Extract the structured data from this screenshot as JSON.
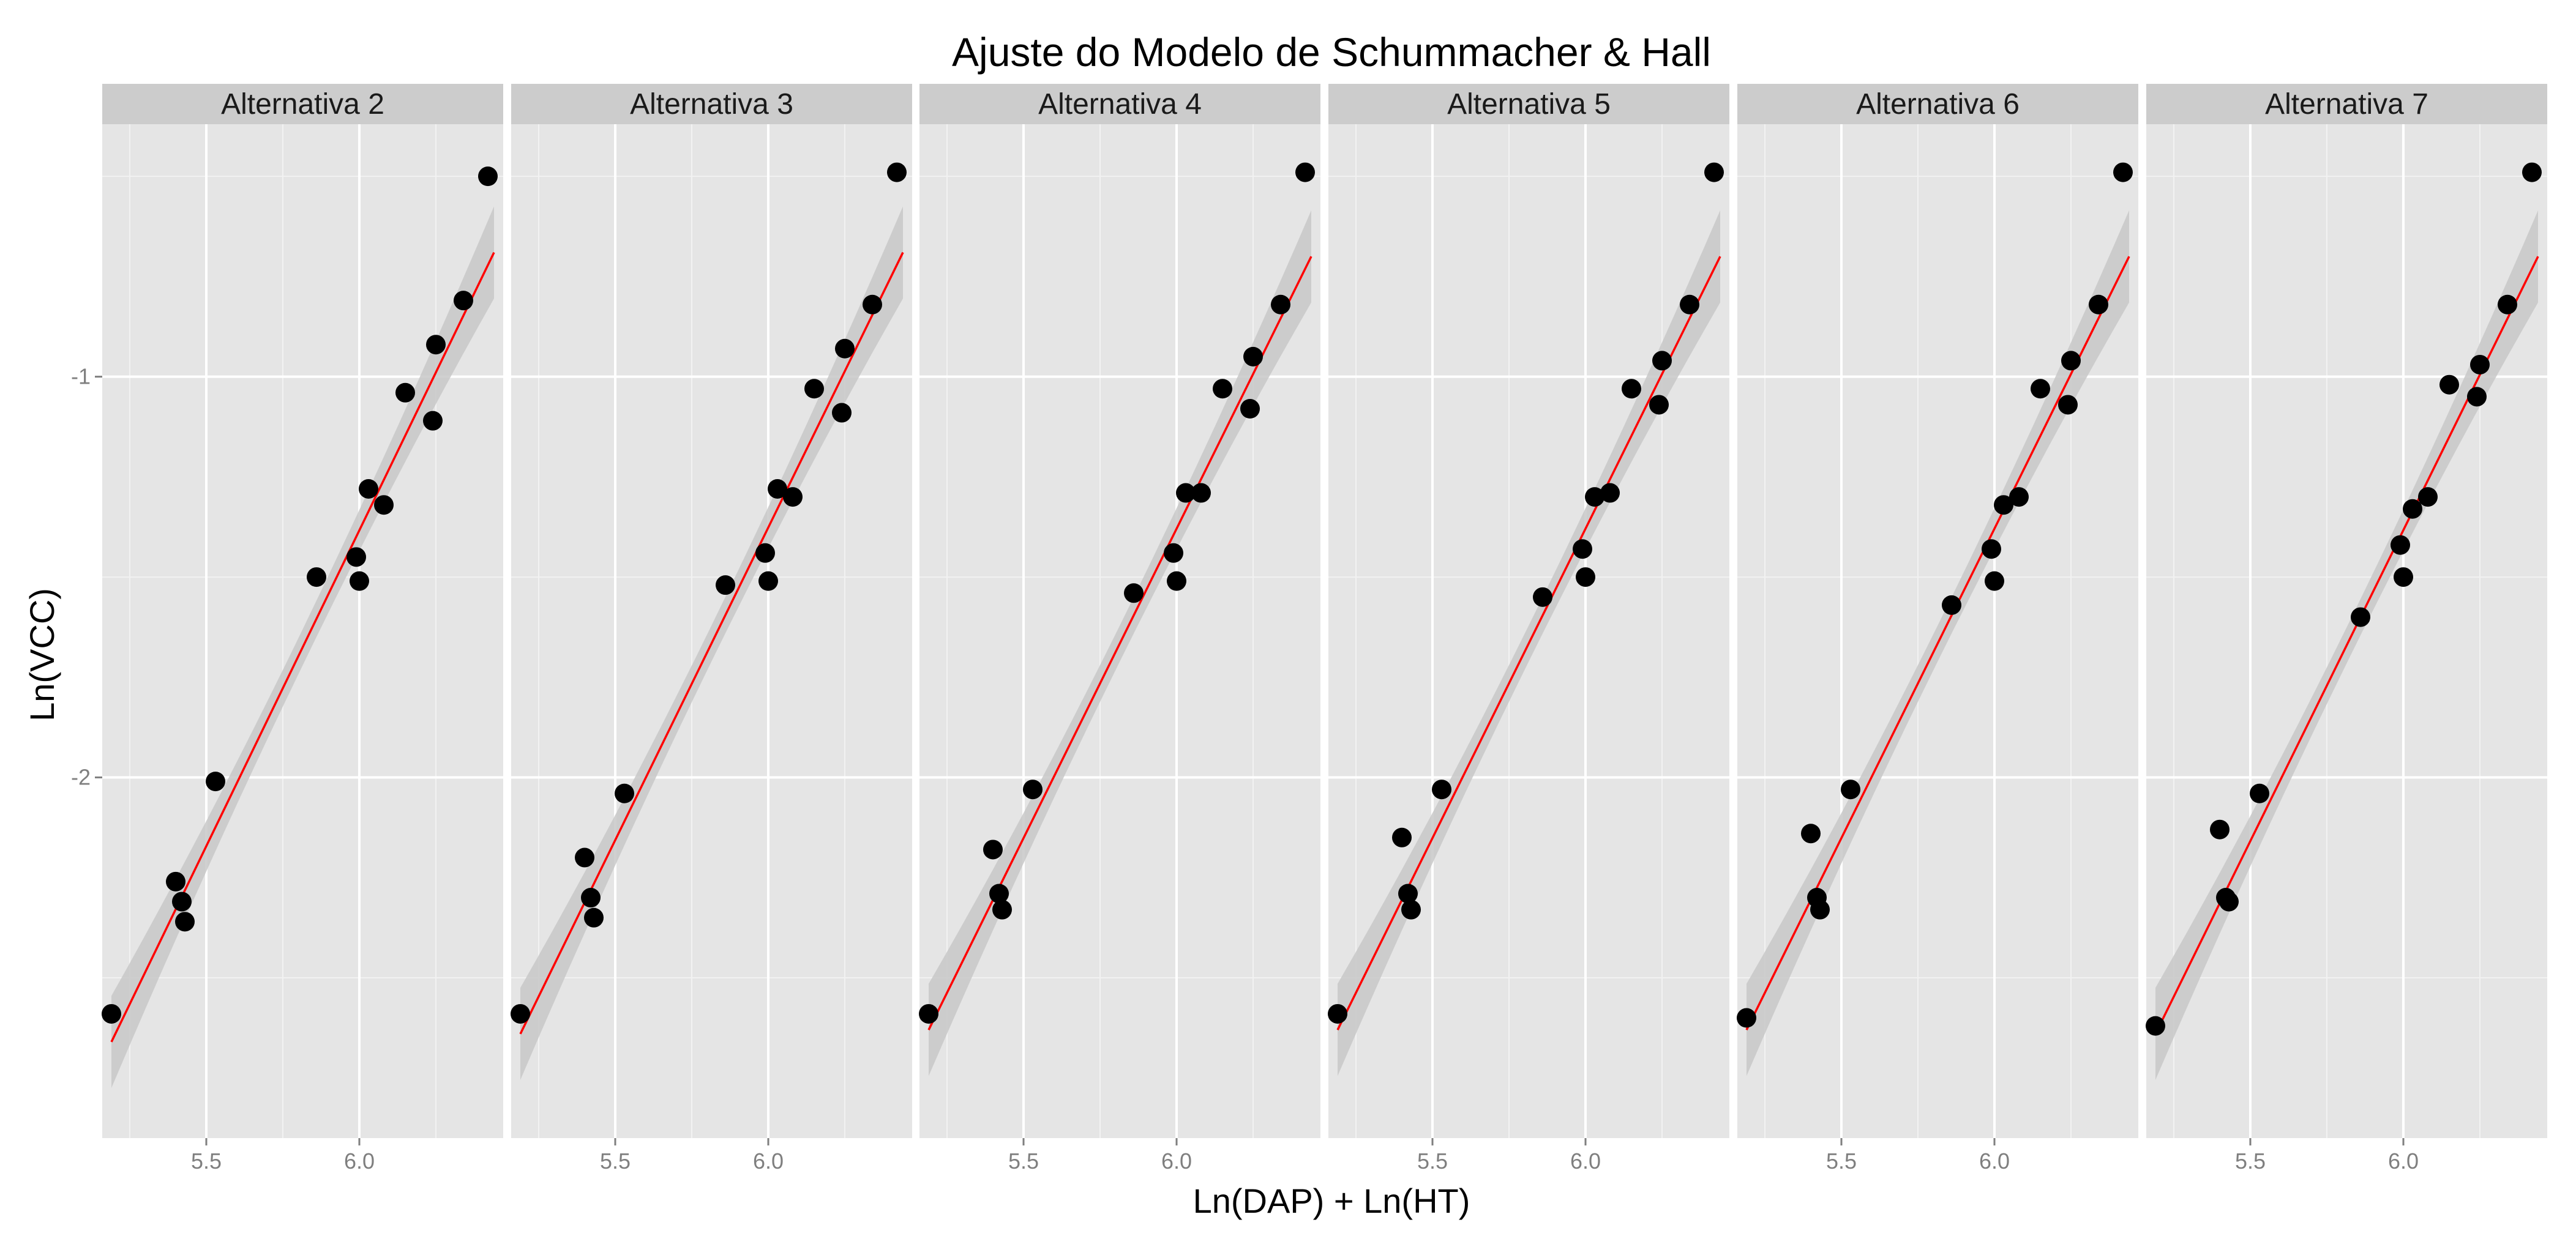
{
  "chart_data": {
    "type": "scatter",
    "title": "Ajuste do Modelo de Schummacher & Hall",
    "xlabel": "Ln(DAP) + Ln(HT)",
    "ylabel": "Ln(VCC)",
    "xlim": [
      5.16,
      6.47
    ],
    "ylim": [
      -2.9,
      -0.37
    ],
    "x_ticks": [
      5.5,
      6.0
    ],
    "x_tick_labels": [
      "5.5",
      "6.0"
    ],
    "y_ticks": [
      -1,
      -2
    ],
    "y_tick_labels": [
      "-1",
      "-2"
    ],
    "grid": true,
    "colors": {
      "panel_bg": "#e5e5e5",
      "strip_bg": "#cccccc",
      "grid_major": "#ffffff",
      "grid_minor": "#f2f2f2",
      "point": "#000000",
      "fit_line": "#ff0000",
      "confidence_band": "#c8c8c8"
    },
    "x": [
      5.19,
      5.4,
      5.42,
      5.43,
      5.53,
      5.86,
      5.99,
      6.0,
      6.03,
      6.08,
      6.15,
      6.24,
      6.25,
      6.34,
      6.42
    ],
    "panels": [
      {
        "name": "Alternativa 2",
        "values": [
          -2.59,
          -2.26,
          -2.31,
          -2.36,
          -2.01,
          -1.5,
          -1.45,
          -1.51,
          -1.28,
          -1.32,
          -1.04,
          -1.11,
          -0.92,
          -0.81,
          -0.5
        ],
        "fit": {
          "x": [
            5.19,
            6.44
          ],
          "y": [
            -2.66,
            -0.69
          ]
        }
      },
      {
        "name": "Alternativa 3",
        "values": [
          -2.59,
          -2.2,
          -2.3,
          -2.35,
          -2.04,
          -1.52,
          -1.44,
          -1.51,
          -1.28,
          -1.3,
          -1.03,
          -1.09,
          -0.93,
          -0.82,
          -0.49
        ],
        "fit": {
          "x": [
            5.19,
            6.44
          ],
          "y": [
            -2.64,
            -0.69
          ]
        }
      },
      {
        "name": "Alternativa 4",
        "values": [
          -2.59,
          -2.18,
          -2.29,
          -2.33,
          -2.03,
          -1.54,
          -1.44,
          -1.51,
          -1.29,
          -1.29,
          -1.03,
          -1.08,
          -0.95,
          -0.82,
          -0.49
        ],
        "fit": {
          "x": [
            5.19,
            6.44
          ],
          "y": [
            -2.63,
            -0.7
          ]
        }
      },
      {
        "name": "Alternativa 5",
        "values": [
          -2.59,
          -2.15,
          -2.29,
          -2.33,
          -2.03,
          -1.55,
          -1.43,
          -1.5,
          -1.3,
          -1.29,
          -1.03,
          -1.07,
          -0.96,
          -0.82,
          -0.49
        ],
        "fit": {
          "x": [
            5.19,
            6.44
          ],
          "y": [
            -2.63,
            -0.7
          ]
        }
      },
      {
        "name": "Alternativa 6",
        "values": [
          -2.6,
          -2.14,
          -2.3,
          -2.33,
          -2.03,
          -1.57,
          -1.43,
          -1.51,
          -1.32,
          -1.3,
          -1.03,
          -1.07,
          -0.96,
          -0.82,
          -0.49
        ],
        "fit": {
          "x": [
            5.19,
            6.44
          ],
          "y": [
            -2.63,
            -0.7
          ]
        }
      },
      {
        "name": "Alternativa 7",
        "values": [
          -2.62,
          -2.13,
          -2.3,
          -2.31,
          -2.04,
          -1.6,
          -1.42,
          -1.5,
          -1.33,
          -1.3,
          -1.02,
          -1.05,
          -0.97,
          -0.82,
          -0.49
        ],
        "fit": {
          "x": [
            5.19,
            6.44
          ],
          "y": [
            -2.64,
            -0.7
          ]
        }
      }
    ]
  }
}
